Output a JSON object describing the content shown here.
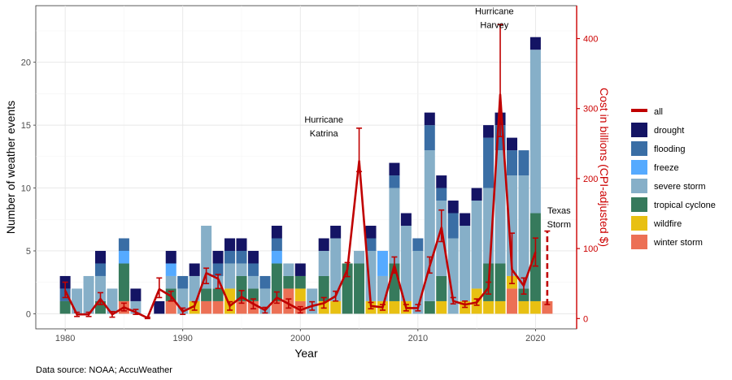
{
  "chart_data": {
    "type": "bar",
    "stacked": true,
    "xlabel": "Year",
    "ylabel": "Number of weather events",
    "y2label": "Cost in billions (CPI-adjusted $)",
    "xlim": [
      1977.5,
      2023.5
    ],
    "ylim": [
      -1.2,
      24.5
    ],
    "y2lim": [
      -14.7,
      447.0
    ],
    "x_ticks": [
      1980,
      1990,
      2000,
      2010,
      2020
    ],
    "y_ticks": [
      0,
      5,
      10,
      15,
      20
    ],
    "y2_ticks": [
      0,
      100,
      200,
      300,
      400
    ],
    "grid": true,
    "legend_position": "right",
    "caption": "Data source: NOAA; AccuWeather",
    "colors": {
      "drought": "#141464",
      "flooding": "#3a6ea5",
      "freeze": "#55aaff",
      "severe storm": "#86afc8",
      "tropical cyclone": "#367a5c",
      "wildfire": "#e8c012",
      "winter storm": "#ec7055",
      "all": "#c00000"
    },
    "stack_order": [
      "winter storm",
      "wildfire",
      "tropical cyclone",
      "severe storm",
      "freeze",
      "flooding",
      "drought"
    ],
    "legend_items": [
      "all",
      "drought",
      "flooding",
      "freeze",
      "severe storm",
      "tropical cyclone",
      "wildfire",
      "winter storm"
    ],
    "years": [
      1980,
      1981,
      1982,
      1983,
      1984,
      1985,
      1986,
      1987,
      1988,
      1989,
      1990,
      1991,
      1992,
      1993,
      1994,
      1995,
      1996,
      1997,
      1998,
      1999,
      2000,
      2001,
      2002,
      2003,
      2004,
      2005,
      2006,
      2007,
      2008,
      2009,
      2010,
      2011,
      2012,
      2013,
      2014,
      2015,
      2016,
      2017,
      2018,
      2019,
      2020,
      2021
    ],
    "series": [
      {
        "name": "winter storm",
        "values": [
          0,
          0,
          0,
          0,
          0,
          1,
          0,
          0,
          0,
          1,
          0,
          0,
          1,
          1,
          0,
          1,
          1,
          0,
          1,
          2,
          1,
          0,
          0,
          0,
          0,
          0,
          0,
          0,
          0,
          0,
          0,
          0,
          0,
          0,
          0,
          0,
          0,
          0,
          2,
          0,
          0,
          1
        ]
      },
      {
        "name": "wildfire",
        "values": [
          0,
          0,
          0,
          0,
          0,
          0,
          0,
          0,
          0,
          0,
          0,
          1,
          0,
          0,
          2,
          0,
          0,
          0,
          0,
          0,
          1,
          0,
          1,
          1,
          0,
          0,
          1,
          1,
          1,
          1,
          0,
          0,
          1,
          0,
          1,
          2,
          1,
          1,
          1,
          1,
          1,
          0
        ]
      },
      {
        "name": "tropical cyclone",
        "values": [
          1,
          0,
          0,
          1,
          0,
          3,
          0,
          0,
          0,
          1,
          0,
          0,
          1,
          1,
          0,
          2,
          1,
          0,
          3,
          1,
          1,
          0,
          2,
          0,
          4,
          4,
          0,
          0,
          3,
          0,
          0,
          1,
          2,
          0,
          0,
          0,
          3,
          3,
          0,
          1,
          7,
          0
        ]
      },
      {
        "name": "severe storm",
        "values": [
          0,
          2,
          3,
          2,
          2,
          0,
          1,
          0,
          0,
          1,
          2,
          2,
          5,
          1,
          2,
          1,
          1,
          2,
          0,
          1,
          0,
          2,
          2,
          5,
          0,
          1,
          4,
          2,
          6,
          6,
          5,
          12,
          6,
          6,
          6,
          7,
          6,
          9,
          8,
          9,
          13,
          0
        ]
      },
      {
        "name": "freeze",
        "values": [
          0,
          0,
          0,
          0,
          0,
          1,
          0,
          0,
          0,
          1,
          0,
          0,
          0,
          0,
          0,
          0,
          0,
          0,
          1,
          0,
          0,
          0,
          0,
          0,
          0,
          0,
          0,
          2,
          0,
          0,
          0,
          0,
          0,
          0,
          0,
          0,
          0,
          0,
          0,
          0,
          0,
          0
        ]
      },
      {
        "name": "flooding",
        "values": [
          1,
          0,
          0,
          1,
          0,
          1,
          0,
          0,
          0,
          0,
          1,
          0,
          0,
          1,
          1,
          1,
          1,
          1,
          1,
          0,
          0,
          0,
          0,
          0,
          0,
          0,
          1,
          0,
          1,
          0,
          1,
          2,
          1,
          2,
          0,
          0,
          4,
          2,
          2,
          2,
          0,
          0
        ]
      },
      {
        "name": "drought",
        "values": [
          1,
          0,
          0,
          1,
          0,
          0,
          1,
          0,
          1,
          1,
          0,
          1,
          0,
          1,
          1,
          1,
          1,
          0,
          1,
          0,
          1,
          0,
          1,
          1,
          0,
          0,
          1,
          0,
          1,
          1,
          0,
          1,
          1,
          1,
          1,
          1,
          1,
          1,
          1,
          0,
          1,
          0
        ]
      }
    ],
    "cost_series": {
      "name": "all",
      "values": [
        40,
        6,
        6,
        28,
        6,
        16,
        9,
        1,
        42,
        32,
        10,
        18,
        65,
        57,
        18,
        31,
        21,
        12,
        30,
        21,
        12,
        18,
        22,
        32,
        70,
        225,
        18,
        16,
        76,
        15,
        15,
        75,
        130,
        25,
        20,
        23,
        44,
        320,
        70,
        47,
        95,
        null
      ],
      "err_low": [
        30,
        3,
        3,
        20,
        2,
        11,
        6,
        0,
        30,
        25,
        6,
        12,
        50,
        43,
        12,
        22,
        14,
        8,
        22,
        15,
        8,
        12,
        15,
        25,
        60,
        210,
        14,
        12,
        65,
        11,
        11,
        65,
        110,
        21,
        16,
        19,
        35,
        260,
        50,
        35,
        75,
        null
      ],
      "err_high": [
        52,
        9,
        9,
        37,
        10,
        22,
        13,
        2,
        58,
        39,
        15,
        24,
        72,
        63,
        24,
        40,
        28,
        16,
        38,
        28,
        17,
        24,
        30,
        39,
        80,
        272,
        23,
        20,
        88,
        20,
        20,
        88,
        155,
        30,
        25,
        28,
        52,
        420,
        122,
        58,
        115,
        null
      ],
      "pending": {
        "year": 2021,
        "low": 20,
        "high": 125
      }
    },
    "annotations": [
      {
        "text_lines": [
          "Hurricane",
          "Katrina"
        ],
        "x": 2002,
        "y2": 280
      },
      {
        "text_lines": [
          "Hurricane",
          "Harvey"
        ],
        "x": 2016.5,
        "y2": 435
      },
      {
        "text_lines": [
          "Texas",
          "Storm"
        ],
        "x": 2022,
        "y2": 150
      }
    ]
  }
}
